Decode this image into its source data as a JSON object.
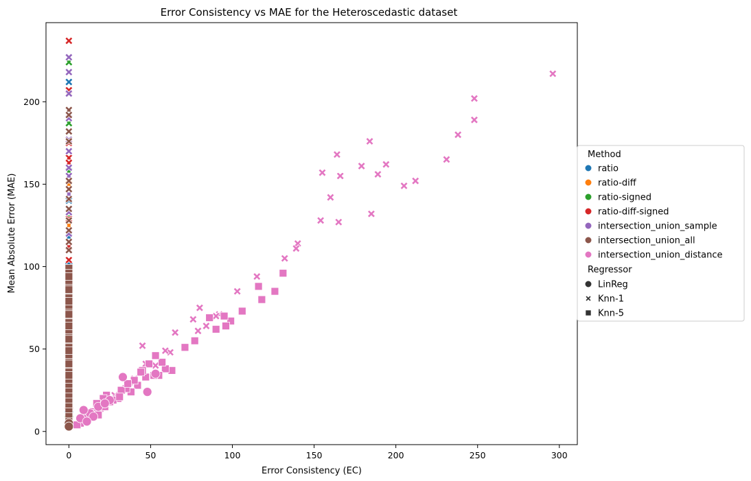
{
  "chart_data": {
    "type": "scatter",
    "title": "Error Consistency vs MAE for the Heteroscedastic dataset",
    "xlabel": "Error Consistency (EC)",
    "ylabel": "Mean Absolute Error (MAE)",
    "xlim": [
      -14,
      311
    ],
    "ylim": [
      -8,
      248
    ],
    "xticks": [
      0,
      50,
      100,
      150,
      200,
      250,
      300
    ],
    "yticks": [
      0,
      50,
      100,
      150,
      200
    ],
    "grid": false,
    "legend_position": "outside-right",
    "legend": {
      "method_title": "Method",
      "regressor_title": "Regressor",
      "methods": [
        {
          "name": "ratio",
          "color": "#1f77b4"
        },
        {
          "name": "ratio-diff",
          "color": "#ff7f0e"
        },
        {
          "name": "ratio-signed",
          "color": "#2ca02c"
        },
        {
          "name": "ratio-diff-signed",
          "color": "#d62728"
        },
        {
          "name": "intersection_union_sample",
          "color": "#9467bd"
        },
        {
          "name": "intersection_union_all",
          "color": "#8c564b"
        },
        {
          "name": "intersection_union_distance",
          "color": "#e377c2"
        }
      ],
      "regressors": [
        {
          "name": "LinReg",
          "marker": "circle"
        },
        {
          "name": "Knn-1",
          "marker": "x"
        },
        {
          "name": "Knn-5",
          "marker": "square"
        }
      ]
    },
    "series": [
      {
        "method": "ratio",
        "regressor": "Knn-1",
        "x": [
          0,
          0,
          0,
          0
        ],
        "y": [
          212,
          182,
          140,
          118
        ]
      },
      {
        "method": "ratio",
        "regressor": "Knn-5",
        "x": [
          0,
          0,
          0,
          0
        ],
        "y": [
          101,
          62,
          35,
          20
        ]
      },
      {
        "method": "ratio",
        "regressor": "LinReg",
        "x": [
          0,
          0
        ],
        "y": [
          12,
          6
        ]
      },
      {
        "method": "ratio-diff",
        "regressor": "Knn-1",
        "x": [
          0,
          0
        ],
        "y": [
          150,
          125
        ]
      },
      {
        "method": "ratio-diff",
        "regressor": "Knn-5",
        "x": [
          0,
          0
        ],
        "y": [
          68,
          40
        ]
      },
      {
        "method": "ratio-signed",
        "regressor": "Knn-1",
        "x": [
          0,
          0,
          0,
          0
        ],
        "y": [
          224,
          187,
          158,
          130
        ]
      },
      {
        "method": "ratio-signed",
        "regressor": "Knn-5",
        "x": [
          0,
          0,
          0
        ],
        "y": [
          95,
          58,
          30
        ]
      },
      {
        "method": "ratio-signed",
        "regressor": "LinReg",
        "x": [
          0
        ],
        "y": [
          9
        ]
      },
      {
        "method": "ratio-diff-signed",
        "regressor": "Knn-1",
        "x": [
          0,
          0,
          0,
          0,
          0,
          0,
          0,
          0
        ],
        "y": [
          237,
          207,
          175,
          166,
          163,
          129,
          112,
          104
        ]
      },
      {
        "method": "ratio-diff-signed",
        "regressor": "Knn-5",
        "x": [
          0,
          0,
          0
        ],
        "y": [
          88,
          52,
          25
        ]
      },
      {
        "method": "ratio-diff-signed",
        "regressor": "LinReg",
        "x": [
          0
        ],
        "y": [
          14
        ]
      },
      {
        "method": "intersection_union_sample",
        "regressor": "Knn-1",
        "x": [
          0,
          0,
          0,
          0,
          0,
          0,
          0,
          0,
          0,
          0,
          0
        ],
        "y": [
          227,
          218,
          205,
          190,
          177,
          170,
          160,
          155,
          144,
          133,
          120
        ]
      },
      {
        "method": "intersection_union_sample",
        "regressor": "Knn-5",
        "x": [
          0,
          0,
          0
        ],
        "y": [
          78,
          48,
          22
        ]
      },
      {
        "method": "intersection_union_all",
        "regressor": "Knn-1",
        "x": [
          0,
          0,
          0,
          0,
          0,
          0,
          0,
          0,
          0,
          0,
          0,
          0,
          0
        ],
        "y": [
          195,
          192,
          182,
          176,
          152,
          147,
          141,
          135,
          128,
          122,
          115,
          110,
          99
        ]
      },
      {
        "method": "intersection_union_all",
        "regressor": "Knn-5",
        "x": [
          0,
          0,
          0,
          0,
          0,
          0,
          0,
          0,
          0,
          0,
          0,
          0,
          0,
          0,
          0,
          0,
          0,
          0,
          0,
          0,
          0,
          0,
          0,
          0,
          0,
          0,
          0,
          0,
          0,
          0,
          0,
          0,
          0,
          0,
          0,
          0,
          0,
          0,
          0,
          0,
          0
        ],
        "y": [
          99,
          96,
          93,
          90,
          87,
          84,
          81,
          78,
          75,
          72,
          69,
          66,
          63,
          60,
          57,
          54,
          51,
          48,
          45,
          42,
          39,
          36,
          33,
          30,
          27,
          24,
          21,
          18,
          15,
          12,
          9,
          6,
          94,
          86,
          79,
          71,
          64,
          56,
          49,
          41,
          34
        ]
      },
      {
        "method": "intersection_union_all",
        "regressor": "LinReg",
        "x": [
          0,
          0
        ],
        "y": [
          5,
          3
        ]
      },
      {
        "method": "intersection_union_distance",
        "regressor": "Knn-1",
        "x": [
          296,
          248,
          248,
          238,
          231,
          212,
          205,
          194,
          189,
          185,
          184,
          179,
          166,
          165,
          164,
          160,
          155,
          154,
          140,
          139,
          132,
          115,
          103,
          92,
          90,
          84,
          80,
          79,
          76,
          65,
          62,
          59,
          53,
          47,
          45,
          40,
          37,
          33,
          28,
          24,
          19,
          14,
          10
        ],
        "y": [
          217,
          202,
          189,
          180,
          165,
          152,
          149,
          162,
          156,
          132,
          176,
          161,
          155,
          127,
          168,
          142,
          157,
          128,
          114,
          111,
          105,
          94,
          85,
          71,
          70,
          64,
          75,
          61,
          68,
          60,
          48,
          49,
          40,
          41,
          52,
          32,
          27,
          25,
          22,
          19,
          16,
          12,
          9
        ]
      },
      {
        "method": "intersection_union_distance",
        "regressor": "Knn-5",
        "x": [
          131,
          126,
          118,
          116,
          106,
          99,
          96,
          95,
          90,
          86,
          77,
          71,
          63,
          59,
          57,
          55,
          53,
          52,
          49,
          47,
          45,
          42,
          40,
          38,
          35,
          32,
          30,
          27,
          25,
          23,
          21,
          19,
          17,
          15,
          13,
          11,
          9,
          7,
          5,
          18,
          22,
          31,
          36,
          44
        ],
        "y": [
          96,
          85,
          80,
          88,
          73,
          67,
          64,
          70,
          62,
          69,
          55,
          51,
          37,
          38,
          42,
          34,
          46,
          34,
          41,
          33,
          37,
          28,
          31,
          24,
          26,
          25,
          20,
          19,
          18,
          22,
          20,
          14,
          17,
          12,
          11,
          8,
          6,
          5,
          4,
          10,
          15,
          21,
          29,
          36
        ]
      },
      {
        "method": "intersection_union_distance",
        "regressor": "LinReg",
        "x": [
          33,
          48,
          53,
          25,
          18,
          13,
          9,
          7,
          22,
          15,
          11
        ],
        "y": [
          33,
          24,
          35,
          19,
          15,
          11,
          13,
          8,
          17,
          9,
          6
        ]
      }
    ]
  }
}
